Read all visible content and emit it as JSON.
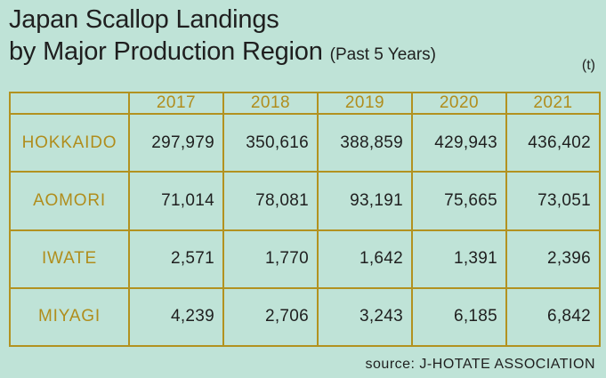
{
  "title": {
    "line1": "Japan Scallop Landings",
    "line2": "by Major Production Region",
    "subtitle": "(Past 5 Years)"
  },
  "unit": "(t)",
  "source": "source: J-HOTATE ASSOCIATION",
  "chart_data": {
    "type": "table",
    "title": "Japan Scallop Landings by Major Production Region",
    "subtitle": "(Past 5 Years)",
    "unit": "(t)",
    "columns": [
      "2017",
      "2018",
      "2019",
      "2020",
      "2021"
    ],
    "rows": [
      {
        "name": "HOKKAIDO",
        "display": [
          "297,979",
          "350,616",
          "388,859",
          "429,943",
          "436,402"
        ],
        "values": [
          297979,
          350616,
          388859,
          429943,
          436402
        ]
      },
      {
        "name": "AOMORI",
        "display": [
          "71,014",
          "78,081",
          "93,191",
          "75,665",
          "73,051"
        ],
        "values": [
          71014,
          78081,
          93191,
          75665,
          73051
        ]
      },
      {
        "name": "IWATE",
        "display": [
          "2,571",
          "1,770",
          "1,642",
          "1,391",
          "2,396"
        ],
        "values": [
          2571,
          1770,
          1642,
          1391,
          2396
        ]
      },
      {
        "name": "MIYAGI",
        "display": [
          "4,239",
          "2,706",
          "3,243",
          "6,185",
          "6,842"
        ],
        "values": [
          4239,
          2706,
          3243,
          6185,
          6842
        ]
      }
    ],
    "colors": {
      "background": "#bfe3d7",
      "border": "#b29220",
      "header_text": "#b08d1c"
    }
  }
}
